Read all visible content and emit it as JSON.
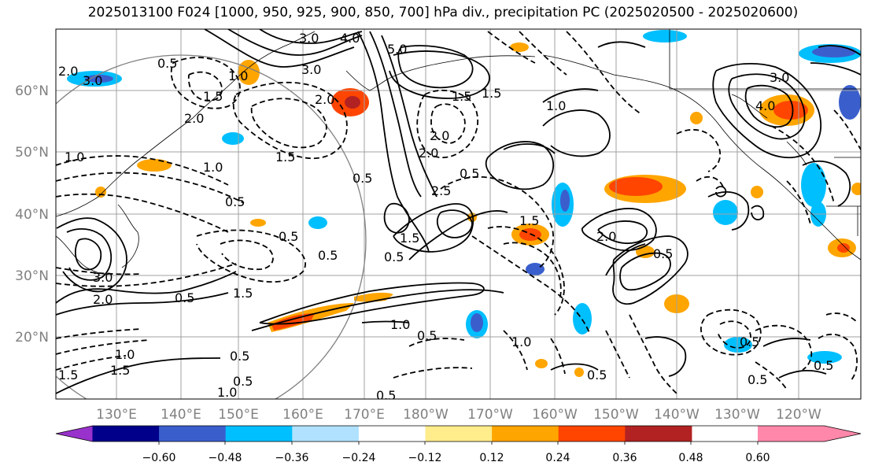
{
  "title": "2025013100 F024 [1000, 950, 925, 900, 850, 700] hPa div., precipitation PC (2025020500 - 2025020600)",
  "latitude_labels": [
    "60°N",
    "50°N",
    "40°N",
    "30°N",
    "20°N"
  ],
  "longitude_labels": [
    "130°E",
    "140°E",
    "150°E",
    "160°E",
    "170°E",
    "180°W",
    "170°W",
    "160°W",
    "150°W",
    "140°W",
    "130°W",
    "120°W"
  ],
  "colorbar": {
    "tick_labels": [
      "−0.60",
      "−0.48",
      "−0.36",
      "−0.24",
      "−0.12",
      "0.12",
      "0.24",
      "0.36",
      "0.48",
      "0.60"
    ],
    "colors": [
      "#9932cc",
      "#00008b",
      "#3a5fcd",
      "#00bfff",
      "#b0e2ff",
      "#ffffff",
      "#ffec8b",
      "#ffa500",
      "#ff4500",
      "#b22222",
      "#ff88aa"
    ]
  },
  "contour_labels": [
    "3.0",
    "4.0",
    "5.0",
    "3.0",
    "2.0",
    "0.5",
    "1.0",
    "1.5",
    "2.0",
    "0.5",
    "1.0",
    "0.5",
    "1.5",
    "0.5",
    "0.5",
    "1.5",
    "0.5",
    "2.0",
    "1.5",
    "2.0",
    "0.5",
    "2.5",
    "1.5",
    "2.0",
    "3.0",
    "4.0",
    "3.0",
    "2.0",
    "1.5",
    "1.0",
    "0.5",
    "1.0",
    "0.5",
    "1.0",
    "0.5",
    "0.5",
    "0.5",
    "1.5",
    "1.0",
    "3.0",
    "2.0",
    "1.5",
    "1.0",
    "1.5",
    "0.5",
    "1.0",
    "0.5",
    "0.5",
    "0.5",
    "0.5"
  ]
}
